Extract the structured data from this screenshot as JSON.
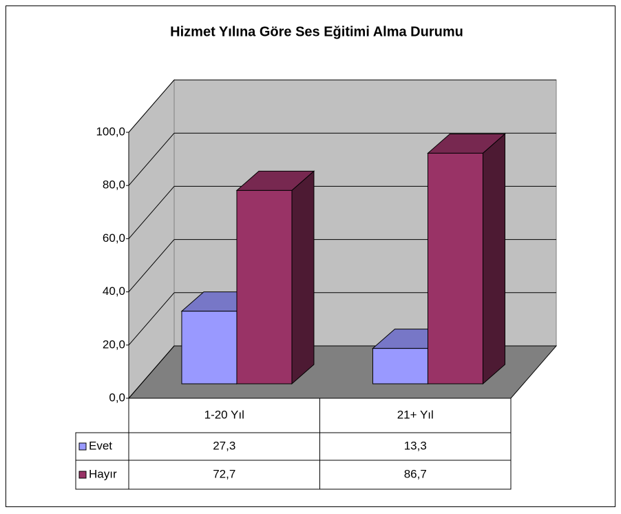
{
  "chart_data": {
    "type": "bar",
    "title": "Hizmet Yılına Göre Ses Eğitimi Alma Durumu",
    "categories": [
      "1-20 Yıl",
      "21+ Yıl"
    ],
    "series": [
      {
        "name": "Evet",
        "color": "#9999ff",
        "values": [
          27.3,
          13.3
        ],
        "value_labels": [
          "27,3",
          "13,3"
        ]
      },
      {
        "name": "Hayır",
        "color": "#993366",
        "values": [
          72.7,
          86.7
        ],
        "value_labels": [
          "72,7",
          "86,7"
        ]
      }
    ],
    "ylim": [
      0,
      100
    ],
    "yticks": [
      {
        "value": 0,
        "label": "0,0"
      },
      {
        "value": 20,
        "label": "20,0"
      },
      {
        "value": 40,
        "label": "40,0"
      },
      {
        "value": 60,
        "label": "60,0"
      },
      {
        "value": 80,
        "label": "80,0"
      },
      {
        "value": 100,
        "label": "100,0"
      }
    ],
    "grid": true
  }
}
